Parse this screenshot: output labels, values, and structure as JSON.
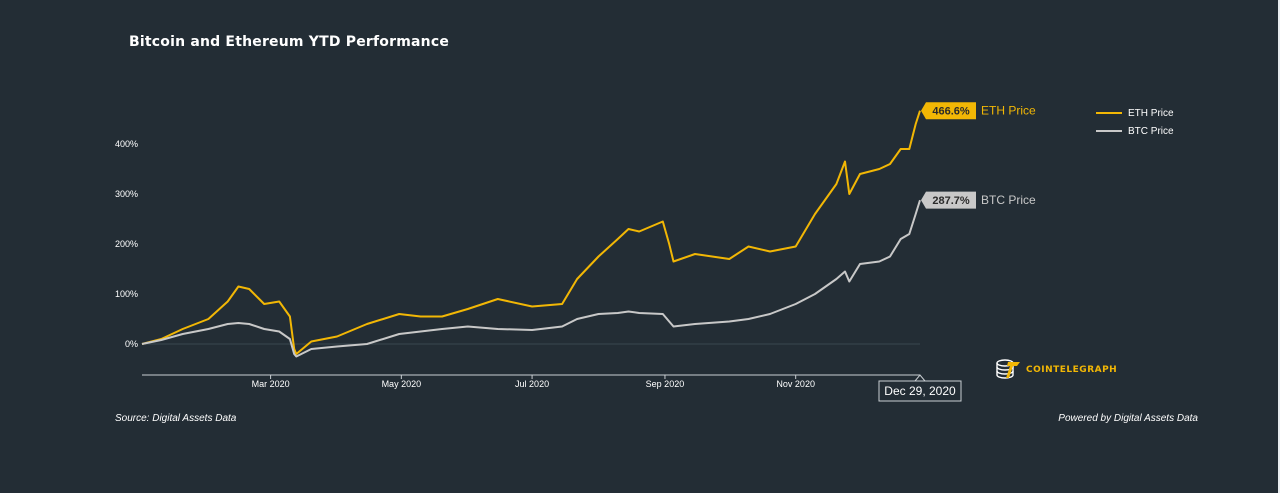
{
  "page": {
    "title": "Bitcoin and Ethereum YTD Performance",
    "source": "Source: Digital Assets Data",
    "powered_by": "Powered by Digital Assets Data",
    "logo_text": "COINTELEGRAPH",
    "logo_icon": "cointelegraph-coin-stack-icon"
  },
  "colors": {
    "background": "#232d35",
    "eth": "#f2b705",
    "btc": "#c8c8c8",
    "axis": "#c9ced2",
    "text": "#ffffff"
  },
  "chart_data": {
    "type": "line",
    "title": "Bitcoin and Ethereum YTD Performance",
    "x_range": [
      "2020-01-01",
      "2020-12-29"
    ],
    "ylim": [
      -60,
      480
    ],
    "yticks": [
      0,
      100,
      200,
      300,
      400
    ],
    "ytick_labels": [
      "0%",
      "100%",
      "200%",
      "300%",
      "400%"
    ],
    "xticks": [
      "2020-03-01",
      "2020-05-01",
      "2020-07-01",
      "2020-09-01",
      "2020-11-01"
    ],
    "xtick_labels": [
      "Mar 2020",
      "May 2020",
      "Jul 2020",
      "Sep 2020",
      "Nov 2020"
    ],
    "grid": false,
    "legend_position": "top-right",
    "crosshair_label": "Dec 29, 2020",
    "series": [
      {
        "name": "ETH Price",
        "end_label": "466.6%",
        "dates": [
          "2020-01-01",
          "2020-01-10",
          "2020-01-20",
          "2020-02-01",
          "2020-02-10",
          "2020-02-15",
          "2020-02-20",
          "2020-02-27",
          "2020-03-05",
          "2020-03-10",
          "2020-03-12",
          "2020-03-13",
          "2020-03-20",
          "2020-04-01",
          "2020-04-15",
          "2020-04-30",
          "2020-05-10",
          "2020-05-20",
          "2020-06-01",
          "2020-06-15",
          "2020-07-01",
          "2020-07-15",
          "2020-07-22",
          "2020-08-01",
          "2020-08-10",
          "2020-08-15",
          "2020-08-20",
          "2020-08-31",
          "2020-09-03",
          "2020-09-05",
          "2020-09-15",
          "2020-10-01",
          "2020-10-10",
          "2020-10-20",
          "2020-11-01",
          "2020-11-10",
          "2020-11-20",
          "2020-11-24",
          "2020-11-26",
          "2020-12-01",
          "2020-12-10",
          "2020-12-15",
          "2020-12-20",
          "2020-12-24",
          "2020-12-27",
          "2020-12-29"
        ],
        "values": [
          0,
          10,
          30,
          50,
          85,
          115,
          110,
          80,
          85,
          55,
          -10,
          -20,
          5,
          15,
          40,
          60,
          55,
          55,
          70,
          90,
          75,
          80,
          130,
          175,
          210,
          230,
          225,
          245,
          200,
          165,
          180,
          170,
          195,
          185,
          195,
          260,
          320,
          365,
          300,
          340,
          350,
          360,
          390,
          390,
          440,
          466.6
        ]
      },
      {
        "name": "BTC Price",
        "end_label": "287.7%",
        "dates": [
          "2020-01-01",
          "2020-01-10",
          "2020-01-20",
          "2020-02-01",
          "2020-02-10",
          "2020-02-15",
          "2020-02-20",
          "2020-02-27",
          "2020-03-05",
          "2020-03-10",
          "2020-03-12",
          "2020-03-13",
          "2020-03-20",
          "2020-04-01",
          "2020-04-15",
          "2020-04-30",
          "2020-05-10",
          "2020-05-20",
          "2020-06-01",
          "2020-06-15",
          "2020-07-01",
          "2020-07-15",
          "2020-07-22",
          "2020-08-01",
          "2020-08-10",
          "2020-08-15",
          "2020-08-20",
          "2020-08-31",
          "2020-09-03",
          "2020-09-05",
          "2020-09-15",
          "2020-10-01",
          "2020-10-10",
          "2020-10-20",
          "2020-11-01",
          "2020-11-10",
          "2020-11-20",
          "2020-11-24",
          "2020-11-26",
          "2020-12-01",
          "2020-12-10",
          "2020-12-15",
          "2020-12-20",
          "2020-12-24",
          "2020-12-27",
          "2020-12-29"
        ],
        "values": [
          0,
          8,
          20,
          30,
          40,
          42,
          40,
          30,
          25,
          10,
          -20,
          -25,
          -10,
          -5,
          0,
          20,
          25,
          30,
          35,
          30,
          28,
          35,
          50,
          60,
          62,
          65,
          62,
          60,
          45,
          35,
          40,
          45,
          50,
          60,
          80,
          100,
          130,
          145,
          125,
          160,
          165,
          175,
          210,
          220,
          260,
          287.7
        ]
      }
    ]
  }
}
